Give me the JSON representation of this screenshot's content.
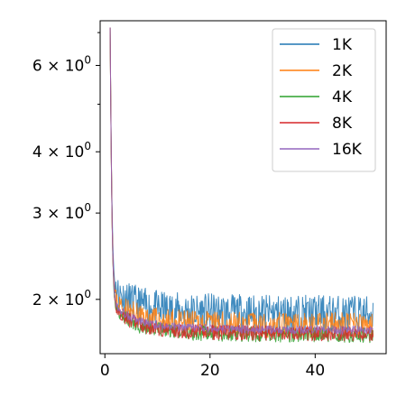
{
  "chart_data": {
    "type": "line",
    "title": "",
    "xlabel": "",
    "ylabel": "",
    "y_scale": "log",
    "xlim": [
      -0.9,
      53.5
    ],
    "ylim": [
      1.55,
      7.4
    ],
    "x_ticks": [
      0,
      20,
      40
    ],
    "x_tick_labels": [
      "0",
      "20",
      "40"
    ],
    "y_ticks": [
      2,
      3,
      4,
      6
    ],
    "y_tick_labels": [
      {
        "base": "2 × 10",
        "exp": "0"
      },
      {
        "base": "3 × 10",
        "exp": "0"
      },
      {
        "base": "4 × 10",
        "exp": "0"
      },
      {
        "base": "6 × 10",
        "exp": "0"
      }
    ],
    "y_minor_ticks": [
      5,
      7
    ],
    "grid": false,
    "legend_position": "top-right",
    "series": [
      {
        "name": "1K",
        "color": "#1f77b4",
        "x_start": 1,
        "x_end": 51,
        "start": 6.9,
        "plateau": 1.87,
        "amplitude": 0.09,
        "seed": 11
      },
      {
        "name": "2K",
        "color": "#ff7f0e",
        "x_start": 1,
        "x_end": 51,
        "start": 6.9,
        "plateau": 1.77,
        "amplitude": 0.06,
        "seed": 23
      },
      {
        "name": "4K",
        "color": "#2ca02c",
        "x_start": 1,
        "x_end": 51,
        "start": 6.9,
        "plateau": 1.69,
        "amplitude": 0.035,
        "seed": 37
      },
      {
        "name": "8K",
        "color": "#d62728",
        "x_start": 1,
        "x_end": 51,
        "start": 6.9,
        "plateau": 1.7,
        "amplitude": 0.035,
        "seed": 41
      },
      {
        "name": "16K",
        "color": "#9467bd",
        "x_start": 1,
        "x_end": 51,
        "start": 6.9,
        "plateau": 1.73,
        "amplitude": 0.02,
        "seed": 53
      }
    ]
  }
}
